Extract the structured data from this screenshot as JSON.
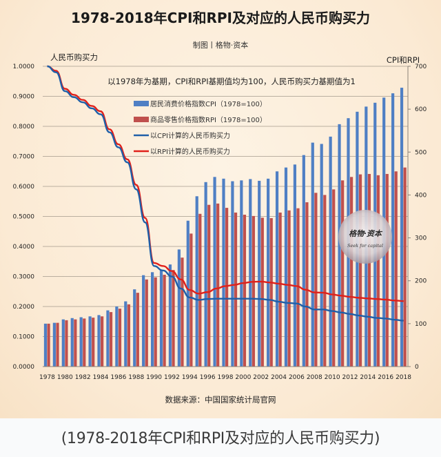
{
  "chart_data": {
    "type": "bar",
    "title": "1978-2018年CPI和RPI及对应的人民币购买力",
    "subtitle": "制图丨格物·资本",
    "note": "以1978年为基期，CPI和RPI基期值均为100，人民币购买力基期值为1",
    "source": "数据来源：中国国家统计局官网",
    "ylabel_left": "人民币购买力",
    "ylabel_right": "CPI和RPI",
    "ylim_left": [
      0,
      1
    ],
    "ylim_right": [
      0,
      700
    ],
    "yticks_left": [
      "0.0000",
      "0.1000",
      "0.2000",
      "0.3000",
      "0.4000",
      "0.5000",
      "0.6000",
      "0.7000",
      "0.8000",
      "0.9000",
      "1.0000"
    ],
    "yticks_right": [
      "0",
      "100",
      "200",
      "300",
      "400",
      "500",
      "600",
      "700"
    ],
    "xtick_labels": [
      "1978",
      "1980",
      "1982",
      "1984",
      "1986",
      "1988",
      "1990",
      "1992",
      "1994",
      "1996",
      "1998",
      "2000",
      "2002",
      "2004",
      "2006",
      "2008",
      "2010",
      "2012",
      "2014",
      "2016",
      "2018"
    ],
    "grid": true,
    "legend_position": "top-center",
    "categories": [
      1978,
      1979,
      1980,
      1981,
      1982,
      1983,
      1984,
      1985,
      1986,
      1987,
      1988,
      1989,
      1990,
      1991,
      1992,
      1993,
      1994,
      1995,
      1996,
      1997,
      1998,
      1999,
      2000,
      2001,
      2002,
      2003,
      2004,
      2005,
      2006,
      2007,
      2008,
      2009,
      2010,
      2011,
      2012,
      2013,
      2014,
      2015,
      2016,
      2017,
      2018
    ],
    "series": [
      {
        "name": "居民消费价格指数CPI（1978=100）",
        "type": "bar",
        "axis": "right",
        "color": "#4f7fc4",
        "values": [
          100,
          102,
          110,
          113,
          115,
          117,
          120,
          131,
          140,
          152,
          180,
          213,
          220,
          225,
          238,
          273,
          340,
          397,
          430,
          442,
          438,
          432,
          434,
          437,
          433,
          438,
          455,
          464,
          471,
          493,
          522,
          519,
          536,
          565,
          579,
          594,
          606,
          615,
          627,
          637,
          650
        ]
      },
      {
        "name": "商品零售价格指数RPI（1978=100）",
        "type": "bar",
        "axis": "right",
        "color": "#c0504d",
        "values": [
          100,
          102,
          108,
          110,
          112,
          114,
          117,
          127,
          135,
          145,
          172,
          203,
          208,
          214,
          225,
          254,
          310,
          356,
          377,
          380,
          370,
          359,
          354,
          351,
          347,
          346,
          359,
          364,
          369,
          383,
          405,
          400,
          413,
          434,
          442,
          448,
          449,
          446,
          449,
          455,
          464
        ]
      },
      {
        "name": "以CPI计算的人民币购买力",
        "type": "line",
        "axis": "left",
        "color": "#1f5fa8",
        "values": [
          1.0,
          0.98,
          0.917,
          0.897,
          0.88,
          0.86,
          0.84,
          0.78,
          0.73,
          0.68,
          0.59,
          0.48,
          0.335,
          0.32,
          0.3,
          0.26,
          0.23,
          0.222,
          0.225,
          0.226,
          0.226,
          0.226,
          0.226,
          0.226,
          0.225,
          0.222,
          0.216,
          0.212,
          0.21,
          0.2,
          0.19,
          0.19,
          0.185,
          0.18,
          0.175,
          0.17,
          0.166,
          0.162,
          0.16,
          0.156,
          0.153
        ]
      },
      {
        "name": "以RPI计算的人民币购买力",
        "type": "line",
        "axis": "left",
        "color": "#e0201a",
        "values": [
          1.0,
          0.985,
          0.925,
          0.905,
          0.888,
          0.868,
          0.85,
          0.79,
          0.74,
          0.69,
          0.605,
          0.495,
          0.345,
          0.335,
          0.318,
          0.29,
          0.255,
          0.243,
          0.248,
          0.26,
          0.268,
          0.272,
          0.278,
          0.282,
          0.283,
          0.28,
          0.276,
          0.272,
          0.268,
          0.256,
          0.247,
          0.246,
          0.24,
          0.236,
          0.232,
          0.229,
          0.227,
          0.225,
          0.223,
          0.22,
          0.218
        ]
      }
    ]
  },
  "watermark": {
    "text_cn": "格物·资本",
    "text_en": "Seek for capital"
  },
  "caption": "(1978-2018年CPI和RPI及对应的人民币购买力)"
}
